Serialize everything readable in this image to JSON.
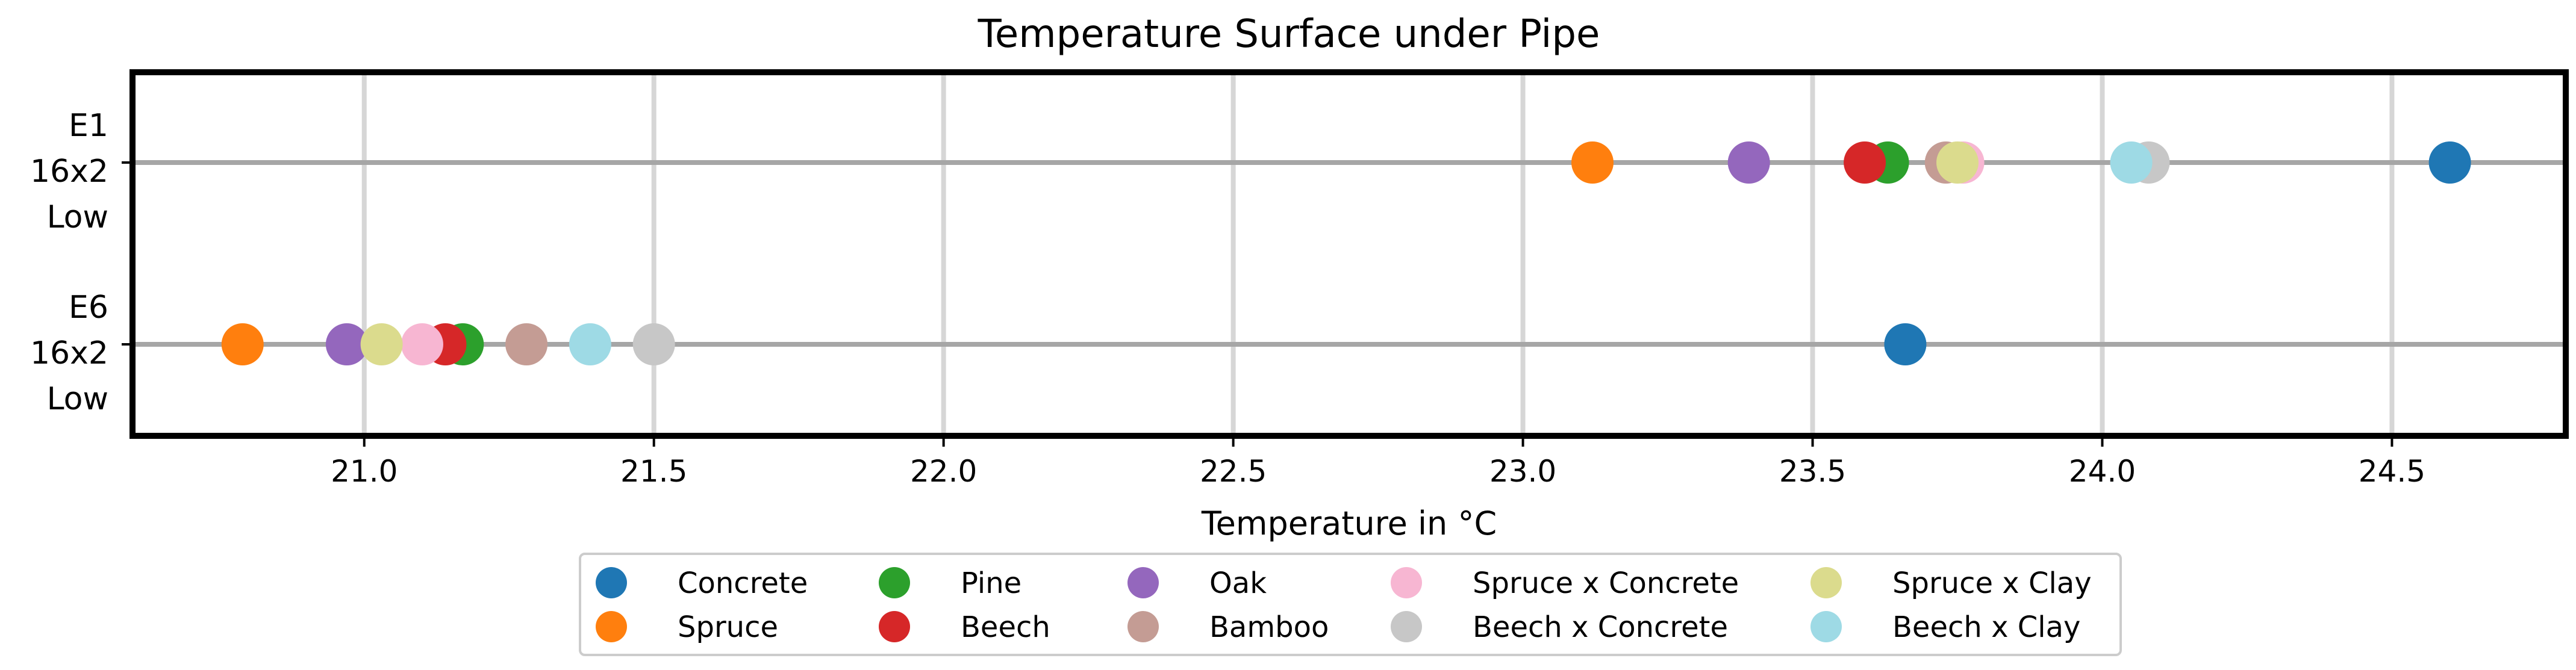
{
  "chart_data": {
    "type": "scatter",
    "title": "Temperature Surface under Pipe",
    "xlabel": "Temperature in °C",
    "ylabel": "",
    "xlim": [
      20.6,
      24.8
    ],
    "xticks": [
      21.0,
      21.5,
      22.0,
      22.5,
      23.0,
      23.5,
      24.0,
      24.5
    ],
    "xtick_labels": [
      "21.0",
      "21.5",
      "22.0",
      "22.5",
      "23.0",
      "23.5",
      "24.0",
      "24.5"
    ],
    "grid": "x",
    "categories": [
      {
        "id": "E1",
        "lines": [
          "E1",
          "16x2",
          "Low"
        ]
      },
      {
        "id": "E6",
        "lines": [
          "E6",
          "16x2",
          "Low"
        ]
      }
    ],
    "legend_position": "below",
    "series": [
      {
        "name": "Concrete",
        "color": "#1f77b4",
        "values": {
          "E1": 24.6,
          "E6": 23.66
        }
      },
      {
        "name": "Spruce",
        "color": "#ff7f0e",
        "values": {
          "E1": 23.12,
          "E6": 20.79
        }
      },
      {
        "name": "Pine",
        "color": "#2ca02c",
        "values": {
          "E1": 23.63,
          "E6": 21.17
        }
      },
      {
        "name": "Beech",
        "color": "#d62728",
        "values": {
          "E1": 23.59,
          "E6": 21.14
        }
      },
      {
        "name": "Oak",
        "color": "#9467bd",
        "values": {
          "E1": 23.39,
          "E6": 20.97
        }
      },
      {
        "name": "Bamboo",
        "color": "#c49c94",
        "values": {
          "E1": 23.73,
          "E6": 21.28
        }
      },
      {
        "name": "Spruce x Concrete",
        "color": "#f7b6d2",
        "values": {
          "E1": 23.76,
          "E6": 21.1
        }
      },
      {
        "name": "Beech x Concrete",
        "color": "#c7c7c7",
        "values": {
          "E1": 24.08,
          "E6": 21.5
        }
      },
      {
        "name": "Spruce x Clay",
        "color": "#dbdb8d",
        "values": {
          "E1": 23.75,
          "E6": 21.03
        }
      },
      {
        "name": "Beech x Clay",
        "color": "#9edae5",
        "values": {
          "E1": 24.05,
          "E6": 21.39
        }
      }
    ]
  }
}
